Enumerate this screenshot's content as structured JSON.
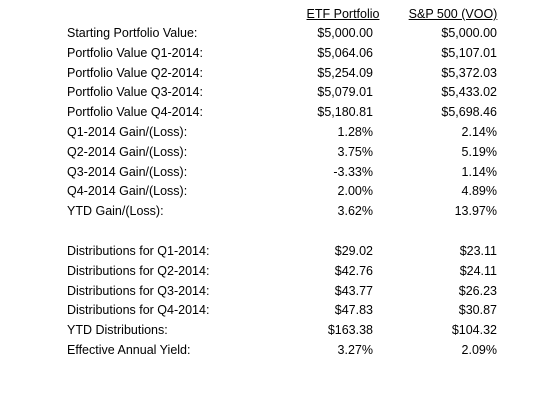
{
  "header": {
    "columns": [
      "ETF Portfolio",
      "S&P 500 (VOO)"
    ]
  },
  "table": {
    "sections": [
      {
        "rows": [
          [
            "Starting Portfolio Value:",
            "$5,000.00",
            "$5,000.00"
          ],
          [
            "Portfolio Value Q1-2014:",
            "$5,064.06",
            "$5,107.01"
          ],
          [
            "Portfolio Value Q2-2014:",
            "$5,254.09",
            "$5,372.03"
          ],
          [
            "Portfolio Value Q3-2014:",
            "$5,079.01",
            "$5,433.02"
          ],
          [
            "Portfolio Value Q4-2014:",
            "$5,180.81",
            "$5,698.46"
          ],
          [
            "Q1-2014 Gain/(Loss):",
            "1.28%",
            "2.14%"
          ],
          [
            "Q2-2014 Gain/(Loss):",
            "3.75%",
            "5.19%"
          ],
          [
            "Q3-2014 Gain/(Loss):",
            "-3.33%",
            "1.14%"
          ],
          [
            "Q4-2014 Gain/(Loss):",
            "2.00%",
            "4.89%"
          ],
          [
            "YTD Gain/(Loss):",
            "3.62%",
            "13.97%"
          ]
        ]
      },
      {
        "rows": [
          [
            "Distributions for Q1-2014:",
            "$29.02",
            "$23.11"
          ],
          [
            "Distributions for Q2-2014:",
            "$42.76",
            "$24.11"
          ],
          [
            "Distributions for Q3-2014:",
            "$43.77",
            "$26.23"
          ],
          [
            "Distributions for Q4-2014:",
            "$47.83",
            "$30.87"
          ],
          [
            "YTD Distributions:",
            "$163.38",
            "$104.32"
          ],
          [
            "Effective Annual Yield:",
            "3.27%",
            "2.09%"
          ]
        ]
      }
    ]
  }
}
